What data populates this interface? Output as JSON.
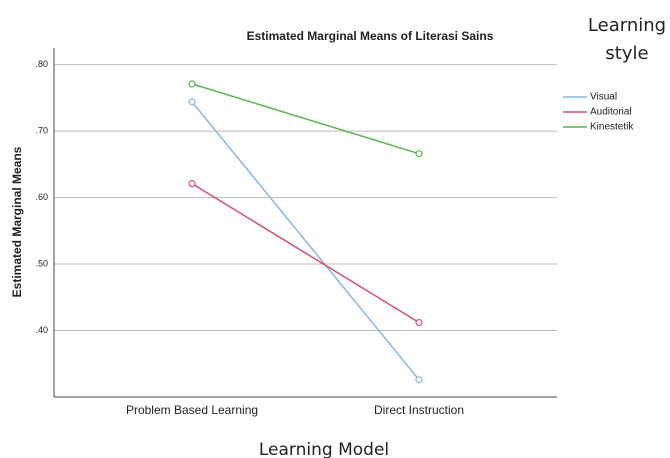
{
  "chart_data": {
    "type": "line",
    "title": "Estimated Marginal Means of Literasi Sains",
    "x_label": "Learning Model",
    "y_label": "Estimated Marginal Means",
    "legend_title": "Learning style",
    "legend_position": "right",
    "categories": [
      "Problem Based Learning",
      "Direct Instruction"
    ],
    "series": [
      {
        "name": "Visual",
        "color": "#8ab6e4",
        "values": [
          0.744,
          0.326
        ]
      },
      {
        "name": "Auditorial",
        "color": "#d9506e",
        "values": [
          0.621,
          0.412
        ]
      },
      {
        "name": "Kinestetik",
        "color": "#5cb356",
        "values": [
          0.771,
          0.666
        ]
      }
    ],
    "ylim": [
      0.3,
      0.825
    ],
    "yticks": [
      {
        "value": 0.4,
        "label": ".40"
      },
      {
        "value": 0.5,
        "label": ".50"
      },
      {
        "value": 0.6,
        "label": ".60"
      },
      {
        "value": 0.7,
        "label": ".70"
      },
      {
        "value": 0.8,
        "label": ".80"
      }
    ],
    "grid": true,
    "markers": true
  }
}
